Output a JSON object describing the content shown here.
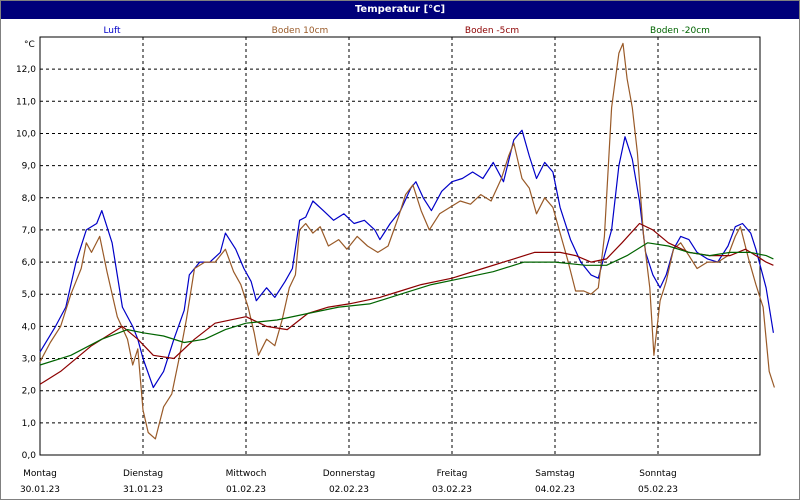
{
  "window": {
    "title": "Temperatur [°C]"
  },
  "chart_data": {
    "type": "line",
    "title": "Temperatur [°C]",
    "ylabel": "°C",
    "ylim": [
      0,
      13
    ],
    "yticks": [
      "0,0",
      "1,0",
      "2,0",
      "3,0",
      "4,0",
      "5,0",
      "6,0",
      "7,0",
      "8,0",
      "9,0",
      "10,0",
      "11,0",
      "12,0"
    ],
    "xlim": [
      0,
      7.15
    ],
    "days": [
      {
        "name": "Montag",
        "date": "30.01.23"
      },
      {
        "name": "Dienstag",
        "date": "31.01.23"
      },
      {
        "name": "Mittwoch",
        "date": "01.02.23"
      },
      {
        "name": "Donnerstag",
        "date": "02.02.23"
      },
      {
        "name": "Freitag",
        "date": "03.02.23"
      },
      {
        "name": "Samstag",
        "date": "04.02.23"
      },
      {
        "name": "Sonntag",
        "date": "05.02.23"
      }
    ],
    "grid": true,
    "legend_position": "top",
    "series": [
      {
        "name": "Luft",
        "color": "#0000c8",
        "points": [
          [
            0,
            3.2
          ],
          [
            0.15,
            4.0
          ],
          [
            0.25,
            4.6
          ],
          [
            0.35,
            6.0
          ],
          [
            0.45,
            7.0
          ],
          [
            0.55,
            7.2
          ],
          [
            0.6,
            7.6
          ],
          [
            0.7,
            6.6
          ],
          [
            0.8,
            4.6
          ],
          [
            0.9,
            4.0
          ],
          [
            0.95,
            3.6
          ],
          [
            1.0,
            3.0
          ],
          [
            1.1,
            2.1
          ],
          [
            1.2,
            2.6
          ],
          [
            1.3,
            3.6
          ],
          [
            1.4,
            4.5
          ],
          [
            1.45,
            5.6
          ],
          [
            1.55,
            6.0
          ],
          [
            1.65,
            6.0
          ],
          [
            1.75,
            6.3
          ],
          [
            1.8,
            6.9
          ],
          [
            1.9,
            6.4
          ],
          [
            1.98,
            5.8
          ],
          [
            2.05,
            5.4
          ],
          [
            2.1,
            4.8
          ],
          [
            2.2,
            5.2
          ],
          [
            2.28,
            4.9
          ],
          [
            2.38,
            5.4
          ],
          [
            2.45,
            5.8
          ],
          [
            2.52,
            7.3
          ],
          [
            2.58,
            7.4
          ],
          [
            2.65,
            7.9
          ],
          [
            2.75,
            7.6
          ],
          [
            2.85,
            7.3
          ],
          [
            2.95,
            7.5
          ],
          [
            3.05,
            7.2
          ],
          [
            3.15,
            7.3
          ],
          [
            3.25,
            7.0
          ],
          [
            3.3,
            6.7
          ],
          [
            3.4,
            7.2
          ],
          [
            3.5,
            7.6
          ],
          [
            3.6,
            8.3
          ],
          [
            3.65,
            8.5
          ],
          [
            3.72,
            8.0
          ],
          [
            3.8,
            7.6
          ],
          [
            3.9,
            8.2
          ],
          [
            4.0,
            8.5
          ],
          [
            4.1,
            8.6
          ],
          [
            4.2,
            8.8
          ],
          [
            4.3,
            8.6
          ],
          [
            4.4,
            9.1
          ],
          [
            4.5,
            8.5
          ],
          [
            4.6,
            9.8
          ],
          [
            4.68,
            10.1
          ],
          [
            4.75,
            9.3
          ],
          [
            4.82,
            8.6
          ],
          [
            4.9,
            9.1
          ],
          [
            4.98,
            8.8
          ],
          [
            5.05,
            7.7
          ],
          [
            5.15,
            6.7
          ],
          [
            5.25,
            6.0
          ],
          [
            5.35,
            5.6
          ],
          [
            5.42,
            5.5
          ],
          [
            5.48,
            6.2
          ],
          [
            5.55,
            7.0
          ],
          [
            5.62,
            9.0
          ],
          [
            5.68,
            9.9
          ],
          [
            5.75,
            9.2
          ],
          [
            5.82,
            7.9
          ],
          [
            5.88,
            6.3
          ],
          [
            5.95,
            5.6
          ],
          [
            6.02,
            5.2
          ],
          [
            6.08,
            5.6
          ],
          [
            6.15,
            6.4
          ],
          [
            6.22,
            6.8
          ],
          [
            6.3,
            6.7
          ],
          [
            6.38,
            6.3
          ],
          [
            6.48,
            6.1
          ],
          [
            6.58,
            6.0
          ],
          [
            6.68,
            6.5
          ],
          [
            6.75,
            7.1
          ],
          [
            6.82,
            7.2
          ],
          [
            6.9,
            6.9
          ],
          [
            6.95,
            6.4
          ],
          [
            7.05,
            5.2
          ],
          [
            7.12,
            3.8
          ]
        ]
      },
      {
        "name": "Boden 10cm",
        "color": "#995a28",
        "points": [
          [
            0,
            2.9
          ],
          [
            0.1,
            3.5
          ],
          [
            0.2,
            4.0
          ],
          [
            0.3,
            5.0
          ],
          [
            0.4,
            5.8
          ],
          [
            0.45,
            6.6
          ],
          [
            0.5,
            6.3
          ],
          [
            0.58,
            6.8
          ],
          [
            0.65,
            5.7
          ],
          [
            0.75,
            4.3
          ],
          [
            0.85,
            3.6
          ],
          [
            0.9,
            2.8
          ],
          [
            0.95,
            3.3
          ],
          [
            1.0,
            1.4
          ],
          [
            1.05,
            0.7
          ],
          [
            1.12,
            0.5
          ],
          [
            1.2,
            1.5
          ],
          [
            1.28,
            1.9
          ],
          [
            1.35,
            3.0
          ],
          [
            1.42,
            4.2
          ],
          [
            1.5,
            5.8
          ],
          [
            1.6,
            6.0
          ],
          [
            1.7,
            6.0
          ],
          [
            1.8,
            6.4
          ],
          [
            1.88,
            5.7
          ],
          [
            1.95,
            5.3
          ],
          [
            2.02,
            4.6
          ],
          [
            2.08,
            3.8
          ],
          [
            2.12,
            3.1
          ],
          [
            2.2,
            3.6
          ],
          [
            2.28,
            3.4
          ],
          [
            2.35,
            4.2
          ],
          [
            2.42,
            5.2
          ],
          [
            2.48,
            5.6
          ],
          [
            2.52,
            7.0
          ],
          [
            2.58,
            7.2
          ],
          [
            2.65,
            6.9
          ],
          [
            2.72,
            7.1
          ],
          [
            2.8,
            6.5
          ],
          [
            2.9,
            6.7
          ],
          [
            2.98,
            6.4
          ],
          [
            3.08,
            6.8
          ],
          [
            3.18,
            6.5
          ],
          [
            3.28,
            6.3
          ],
          [
            3.38,
            6.5
          ],
          [
            3.48,
            7.4
          ],
          [
            3.55,
            8.1
          ],
          [
            3.62,
            8.4
          ],
          [
            3.7,
            7.6
          ],
          [
            3.78,
            7.0
          ],
          [
            3.88,
            7.5
          ],
          [
            3.98,
            7.7
          ],
          [
            4.08,
            7.9
          ],
          [
            4.18,
            7.8
          ],
          [
            4.28,
            8.1
          ],
          [
            4.38,
            7.9
          ],
          [
            4.48,
            8.6
          ],
          [
            4.55,
            9.3
          ],
          [
            4.6,
            9.7
          ],
          [
            4.68,
            8.6
          ],
          [
            4.75,
            8.3
          ],
          [
            4.82,
            7.5
          ],
          [
            4.9,
            8.0
          ],
          [
            4.98,
            7.7
          ],
          [
            5.05,
            6.9
          ],
          [
            5.12,
            6.1
          ],
          [
            5.2,
            5.1
          ],
          [
            5.28,
            5.1
          ],
          [
            5.35,
            5.0
          ],
          [
            5.42,
            5.2
          ],
          [
            5.48,
            6.8
          ],
          [
            5.55,
            10.8
          ],
          [
            5.62,
            12.5
          ],
          [
            5.66,
            12.8
          ],
          [
            5.7,
            11.7
          ],
          [
            5.75,
            10.8
          ],
          [
            5.8,
            9.4
          ],
          [
            5.86,
            6.8
          ],
          [
            5.92,
            5.2
          ],
          [
            5.96,
            3.1
          ],
          [
            6.02,
            4.8
          ],
          [
            6.08,
            5.4
          ],
          [
            6.15,
            6.4
          ],
          [
            6.22,
            6.6
          ],
          [
            6.3,
            6.2
          ],
          [
            6.38,
            5.8
          ],
          [
            6.48,
            6.0
          ],
          [
            6.58,
            6.0
          ],
          [
            6.68,
            6.2
          ],
          [
            6.75,
            6.8
          ],
          [
            6.8,
            7.1
          ],
          [
            6.88,
            6.1
          ],
          [
            6.95,
            5.3
          ],
          [
            7.02,
            4.6
          ],
          [
            7.08,
            2.6
          ],
          [
            7.13,
            2.1
          ]
        ]
      },
      {
        "name": "Boden -5cm",
        "color": "#8c0000",
        "points": [
          [
            0,
            2.2
          ],
          [
            0.2,
            2.6
          ],
          [
            0.5,
            3.4
          ],
          [
            0.8,
            4.0
          ],
          [
            0.95,
            3.6
          ],
          [
            1.1,
            3.1
          ],
          [
            1.3,
            3.0
          ],
          [
            1.5,
            3.6
          ],
          [
            1.7,
            4.1
          ],
          [
            2.0,
            4.3
          ],
          [
            2.2,
            4.0
          ],
          [
            2.4,
            3.9
          ],
          [
            2.6,
            4.4
          ],
          [
            2.8,
            4.6
          ],
          [
            3.0,
            4.7
          ],
          [
            3.3,
            4.9
          ],
          [
            3.5,
            5.1
          ],
          [
            3.7,
            5.3
          ],
          [
            4.0,
            5.5
          ],
          [
            4.3,
            5.8
          ],
          [
            4.6,
            6.1
          ],
          [
            4.8,
            6.3
          ],
          [
            5.05,
            6.3
          ],
          [
            5.2,
            6.2
          ],
          [
            5.35,
            6.0
          ],
          [
            5.5,
            6.1
          ],
          [
            5.65,
            6.6
          ],
          [
            5.82,
            7.2
          ],
          [
            5.95,
            7.0
          ],
          [
            6.1,
            6.6
          ],
          [
            6.3,
            6.3
          ],
          [
            6.5,
            6.2
          ],
          [
            6.7,
            6.2
          ],
          [
            6.85,
            6.4
          ],
          [
            6.95,
            6.2
          ],
          [
            7.05,
            6.0
          ],
          [
            7.12,
            5.9
          ]
        ]
      },
      {
        "name": "Boden -20cm",
        "color": "#006400",
        "points": [
          [
            0,
            2.8
          ],
          [
            0.3,
            3.1
          ],
          [
            0.6,
            3.6
          ],
          [
            0.85,
            3.9
          ],
          [
            1.0,
            3.8
          ],
          [
            1.2,
            3.7
          ],
          [
            1.4,
            3.5
          ],
          [
            1.6,
            3.6
          ],
          [
            1.8,
            3.9
          ],
          [
            2.0,
            4.1
          ],
          [
            2.3,
            4.2
          ],
          [
            2.6,
            4.4
          ],
          [
            2.9,
            4.6
          ],
          [
            3.2,
            4.7
          ],
          [
            3.5,
            5.0
          ],
          [
            3.8,
            5.3
          ],
          [
            4.1,
            5.5
          ],
          [
            4.4,
            5.7
          ],
          [
            4.7,
            6.0
          ],
          [
            5.0,
            6.0
          ],
          [
            5.3,
            5.9
          ],
          [
            5.5,
            5.9
          ],
          [
            5.7,
            6.2
          ],
          [
            5.9,
            6.6
          ],
          [
            6.1,
            6.5
          ],
          [
            6.3,
            6.3
          ],
          [
            6.5,
            6.2
          ],
          [
            6.7,
            6.3
          ],
          [
            6.9,
            6.3
          ],
          [
            7.05,
            6.2
          ],
          [
            7.12,
            6.1
          ]
        ]
      }
    ]
  }
}
